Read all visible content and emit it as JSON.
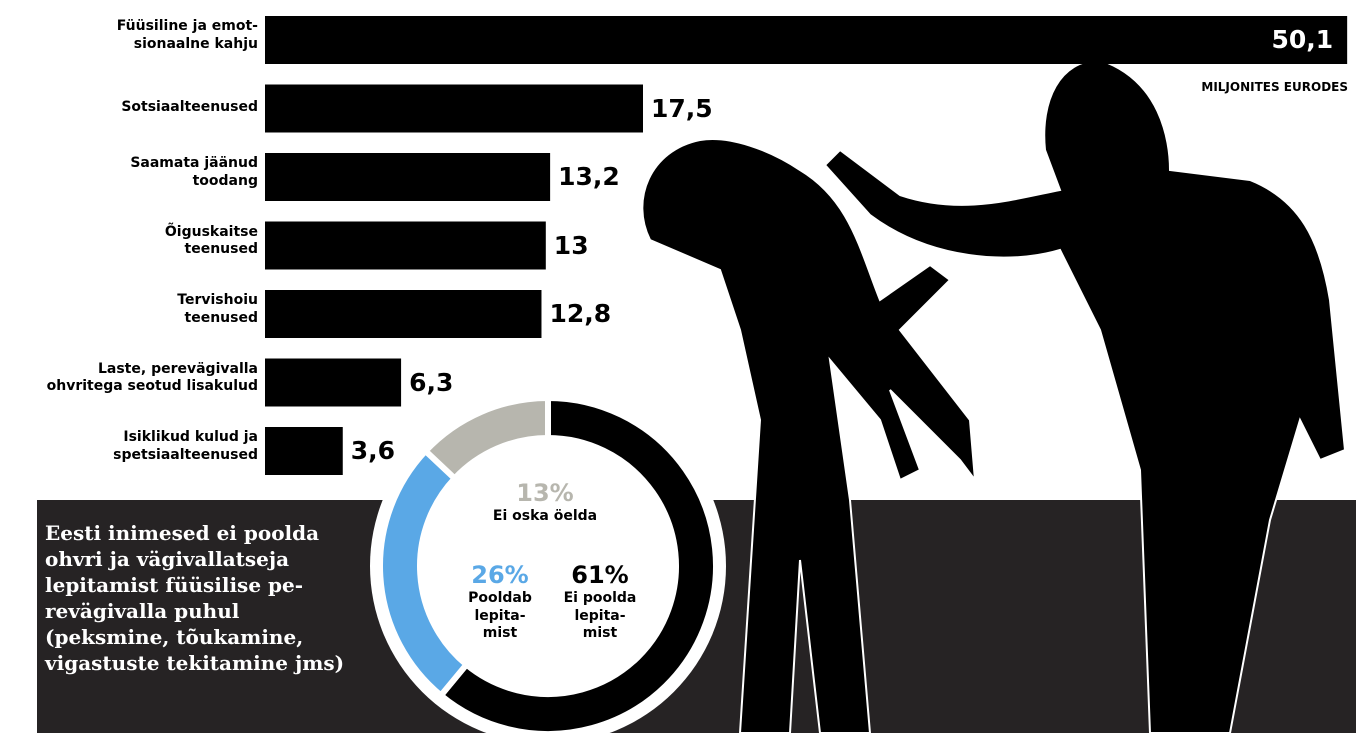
{
  "chart_data": [
    {
      "type": "bar",
      "categories": [
        "Füüsiline ja emot-\nsionaalne kahju",
        "Sotsiaalteenused",
        "Saamata jäänud\ntoodang",
        "Õiguskaitse\nteenused",
        "Tervishoiu\nteenused",
        "Laste, perevägivalla\nohvritega seotud lisakulud",
        "Isiklikud kulud ja\nspetsiaalteenused"
      ],
      "values": [
        50.1,
        17.5,
        13.2,
        13,
        12.8,
        6.3,
        3.6
      ],
      "value_labels": [
        "50,1",
        "17,5",
        "13,2",
        "13",
        "12,8",
        "6,3",
        "3,6"
      ],
      "unit": "MILJONITES EURODES",
      "color": "#000000"
    },
    {
      "type": "donut",
      "title": "Eesti inimesed ei poolda\nohvri ja vägivallatseja\nlepitamist füüsilise pe-\nrevägivalla puhul\n(peksmine, tõukamine,\nvigastuste tekitamine jms)",
      "categories": [
        "Ei poolda\nlepita-\nmist",
        "Pooldab\nlepita-\nmist",
        "Ei oska öelda"
      ],
      "values": [
        61,
        26,
        13
      ],
      "value_labels": [
        "61%",
        "26%",
        "13%"
      ],
      "colors": [
        "#000000",
        "#5aa8e6",
        "#b7b6ae"
      ]
    }
  ]
}
